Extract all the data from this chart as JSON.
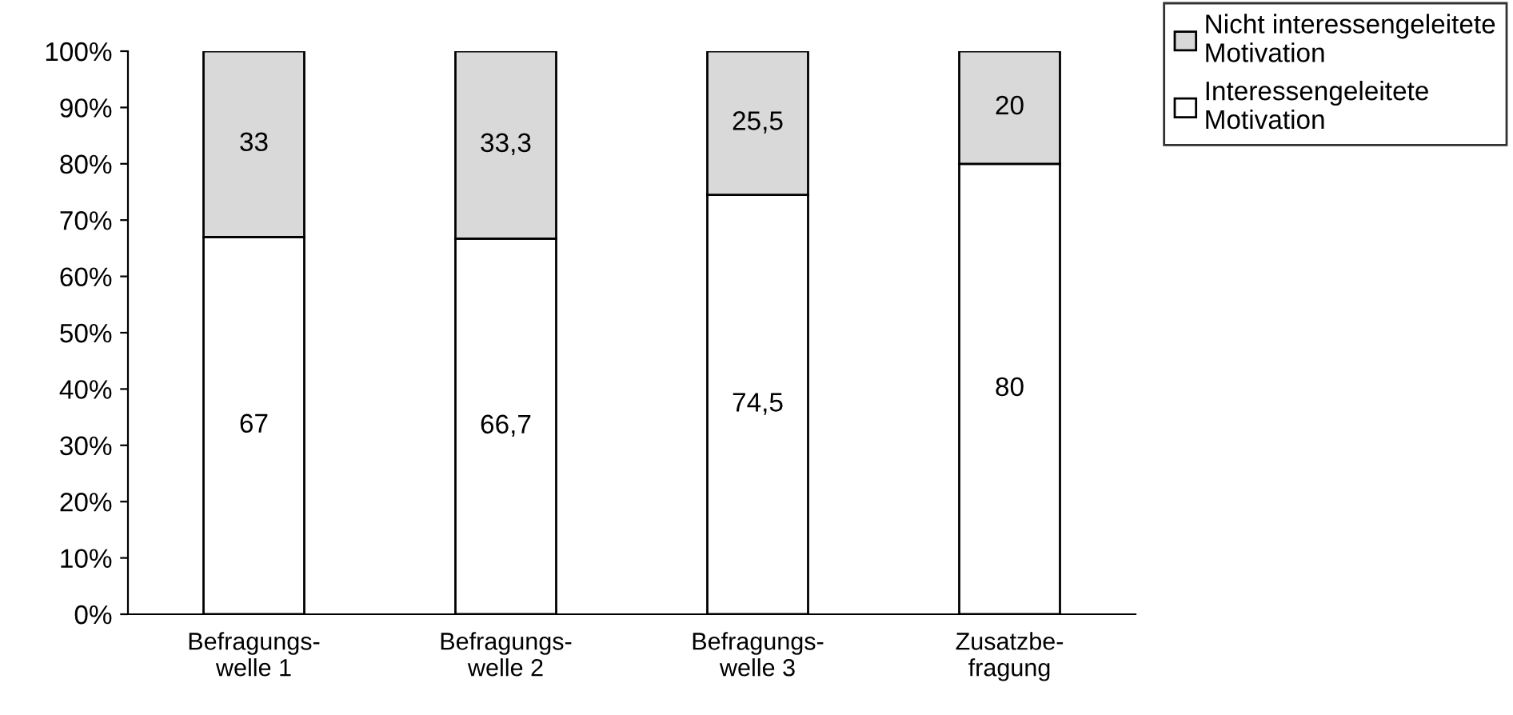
{
  "chart_data": {
    "type": "bar",
    "stacked": true,
    "categories": [
      "Befragungs-\nwelle 1",
      "Befragungs-\nwelle 2",
      "Befragungs-\nwelle 3",
      "Zusatzbe-\nfragung"
    ],
    "series": [
      {
        "name": "Interessengeleitete\nMotivation",
        "color": "#ffffff",
        "values": [
          67,
          66.7,
          74.5,
          80
        ],
        "value_labels": [
          "67",
          "66,7",
          "74,5",
          "80"
        ]
      },
      {
        "name": "Nicht interessengeleitete\nMotivation",
        "color": "#d9d9d9",
        "values": [
          33,
          33.3,
          25.5,
          20
        ],
        "value_labels": [
          "33",
          "33,3",
          "25,5",
          "20"
        ]
      }
    ],
    "ylim": [
      0,
      100
    ],
    "yticks": [
      {
        "value": 0,
        "label": "0%"
      },
      {
        "value": 10,
        "label": "10%"
      },
      {
        "value": 20,
        "label": "20%"
      },
      {
        "value": 30,
        "label": "30%"
      },
      {
        "value": 40,
        "label": "40%"
      },
      {
        "value": 50,
        "label": "50%"
      },
      {
        "value": 60,
        "label": "60%"
      },
      {
        "value": 70,
        "label": "70%"
      },
      {
        "value": 80,
        "label": "80%"
      },
      {
        "value": 90,
        "label": "90%"
      },
      {
        "value": 100,
        "label": "100%"
      }
    ],
    "legend": "top right",
    "grid": false
  }
}
